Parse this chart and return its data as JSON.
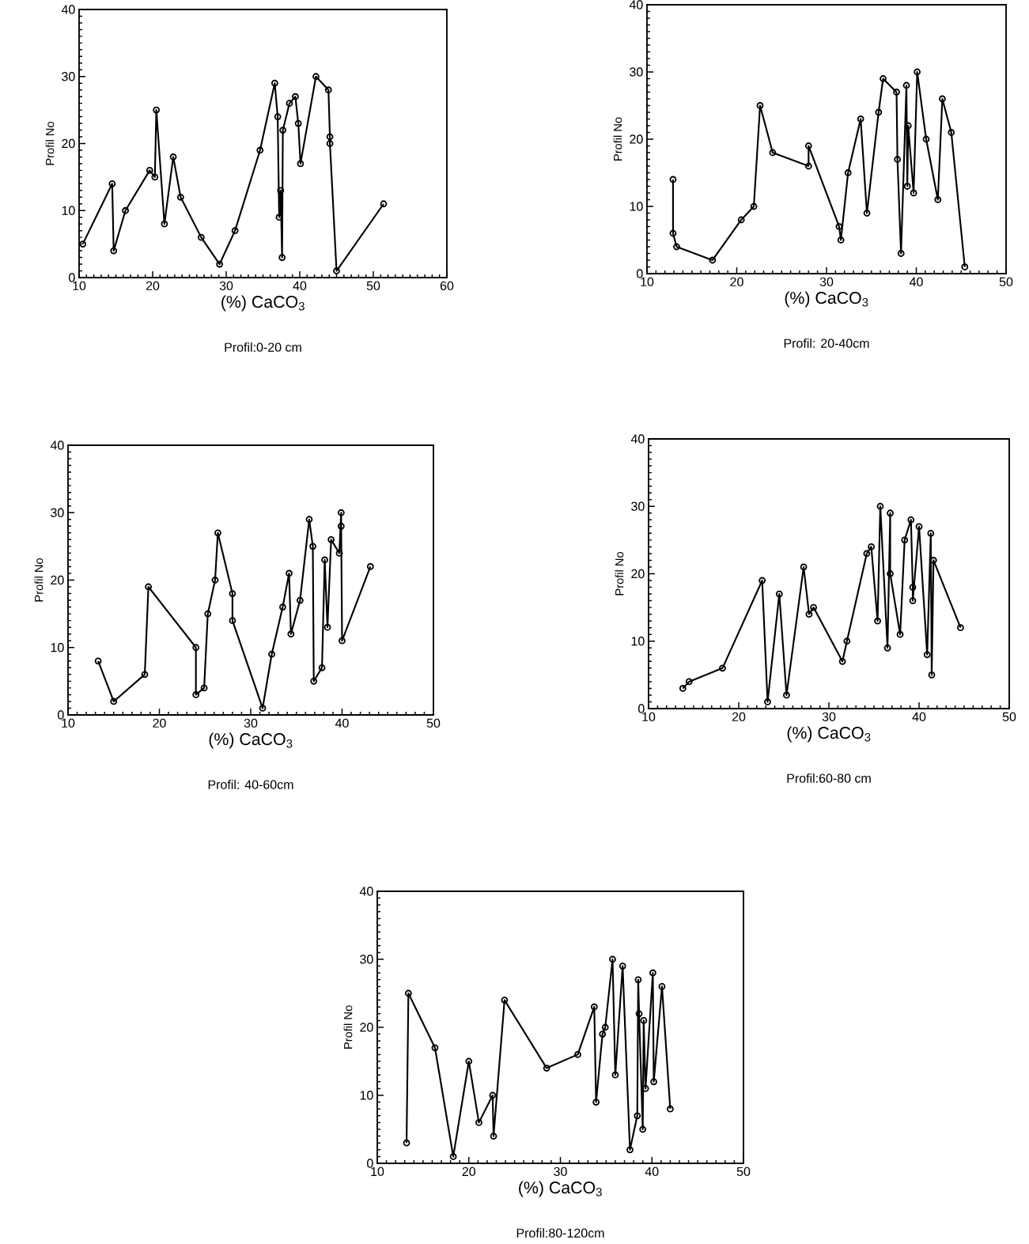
{
  "chart_data": [
    {
      "type": "line",
      "marker": "circle",
      "line_style": "solid",
      "xlabel": "(%) CaCO$_{3}$",
      "ylabel": "Profil No",
      "xlim": [
        10,
        60
      ],
      "ylim": [
        0,
        40
      ],
      "xticks": [
        10,
        20,
        30,
        40,
        50,
        60
      ],
      "yticks": [
        0,
        10,
        20,
        30,
        40
      ],
      "annotations": [
        "Profil:0-20  cm"
      ],
      "series": [
        {
          "color": "#000000",
          "x": [
            10.5,
            14.5,
            14.7,
            16.3,
            19.6,
            20.3,
            20.5,
            21.6,
            22.8,
            23.8,
            26.6,
            29.1,
            31.2,
            34.6,
            36.6,
            37.0,
            37.2,
            37.4,
            37.6,
            37.7,
            38.6,
            39.4,
            39.8,
            40.1,
            42.2,
            43.9,
            44.1,
            44.1,
            45.0,
            51.4
          ],
          "values": [
            5,
            14,
            4,
            10,
            16,
            15,
            25,
            8,
            18,
            12,
            6,
            2,
            7,
            19,
            29,
            24,
            9,
            13,
            3,
            22,
            26,
            27,
            23,
            17,
            30,
            28,
            21,
            20,
            1,
            11
          ]
        }
      ]
    },
    {
      "type": "line",
      "marker": "circle",
      "line_style": "solid",
      "xlabel": "(%) CaCO$_{3}$",
      "ylabel": "Profil No",
      "xlim": [
        10,
        50
      ],
      "ylim": [
        0,
        40
      ],
      "xticks": [
        10,
        20,
        30,
        40,
        50
      ],
      "yticks": [
        0,
        10,
        20,
        30,
        40
      ],
      "annotations": [
        "Profil:  20-40cm"
      ],
      "series": [
        {
          "color": "#000000",
          "x": [
            12.9,
            12.9,
            13.3,
            17.3,
            20.5,
            21.9,
            22.6,
            24.0,
            28.0,
            28.0,
            31.4,
            31.6,
            32.4,
            33.8,
            34.5,
            35.8,
            36.3,
            37.8,
            37.9,
            38.3,
            38.9,
            39.0,
            39.1,
            39.7,
            40.1,
            41.1,
            42.4,
            42.9,
            43.9,
            45.4
          ],
          "values": [
            14,
            6,
            4,
            2,
            8,
            10,
            25,
            18,
            16,
            19,
            7,
            5,
            15,
            23,
            9,
            24,
            29,
            27,
            17,
            3,
            28,
            13,
            22,
            12,
            30,
            20,
            11,
            26,
            21,
            1
          ]
        }
      ]
    },
    {
      "type": "line",
      "marker": "circle",
      "line_style": "solid",
      "xlabel": "(%) CaCO$_{3}$",
      "ylabel": "Profil No",
      "xlim": [
        10,
        50
      ],
      "ylim": [
        0,
        40
      ],
      "xticks": [
        10,
        20,
        30,
        40,
        50
      ],
      "yticks": [
        0,
        10,
        20,
        30,
        40
      ],
      "annotations": [
        "Profil:  40-60cm"
      ],
      "series": [
        {
          "color": "#000000",
          "x": [
            13.3,
            15.0,
            18.4,
            18.8,
            24.0,
            24.0,
            24.9,
            25.3,
            26.1,
            26.4,
            28.0,
            28.0,
            31.3,
            32.3,
            33.5,
            34.2,
            34.4,
            35.4,
            36.4,
            36.8,
            36.9,
            37.8,
            38.1,
            38.4,
            38.8,
            39.7,
            39.9,
            39.9,
            40.0,
            43.1
          ],
          "values": [
            8,
            2,
            6,
            19,
            10,
            3,
            4,
            15,
            20,
            27,
            18,
            14,
            1,
            9,
            16,
            21,
            12,
            17,
            29,
            25,
            5,
            7,
            23,
            13,
            26,
            24,
            30,
            28,
            11,
            22
          ]
        }
      ]
    },
    {
      "type": "line",
      "marker": "circle",
      "line_style": "solid",
      "xlabel": "(%) CaCO$_{3}$",
      "ylabel": "Profil No",
      "xlim": [
        10,
        50
      ],
      "ylim": [
        0,
        40
      ],
      "xticks": [
        10,
        20,
        30,
        40,
        50
      ],
      "yticks": [
        0,
        10,
        20,
        30,
        40
      ],
      "annotations": [
        "Profil:60-80  cm"
      ],
      "series": [
        {
          "color": "#000000",
          "x": [
            13.8,
            14.5,
            18.2,
            22.6,
            23.2,
            24.5,
            25.3,
            27.2,
            27.8,
            28.3,
            31.5,
            32.0,
            34.2,
            34.7,
            35.4,
            35.7,
            36.5,
            36.8,
            36.8,
            37.9,
            38.4,
            39.1,
            39.3,
            39.3,
            40.0,
            40.9,
            41.3,
            41.4,
            41.6,
            44.6
          ],
          "values": [
            3,
            4,
            6,
            19,
            1,
            17,
            2,
            21,
            14,
            15,
            7,
            10,
            23,
            24,
            13,
            30,
            9,
            29,
            20,
            11,
            25,
            28,
            18,
            16,
            27,
            8,
            26,
            5,
            22,
            12
          ]
        }
      ]
    },
    {
      "type": "line",
      "marker": "circle",
      "line_style": "solid",
      "xlabel": "(%) CaCO$_{3}$",
      "ylabel": "Profil No",
      "xlim": [
        10,
        50
      ],
      "ylim": [
        0,
        40
      ],
      "xticks": [
        10,
        20,
        30,
        40,
        50
      ],
      "yticks": [
        0,
        10,
        20,
        30,
        40
      ],
      "annotations": [
        "Profil:80-120cm"
      ],
      "series": [
        {
          "color": "#000000",
          "x": [
            13.2,
            13.4,
            16.3,
            18.3,
            20.0,
            21.1,
            22.6,
            22.7,
            23.9,
            28.5,
            31.9,
            33.7,
            33.9,
            34.6,
            34.9,
            35.7,
            36.0,
            36.8,
            37.6,
            38.4,
            38.5,
            38.6,
            39.0,
            39.1,
            39.3,
            40.1,
            40.2,
            41.1,
            42.0
          ],
          "values": [
            3,
            25,
            17,
            1,
            15,
            6,
            10,
            4,
            24,
            14,
            16,
            23,
            9,
            19,
            20,
            30,
            13,
            29,
            2,
            7,
            27,
            22,
            5,
            21,
            11,
            28,
            12,
            26,
            8
          ]
        }
      ]
    }
  ]
}
